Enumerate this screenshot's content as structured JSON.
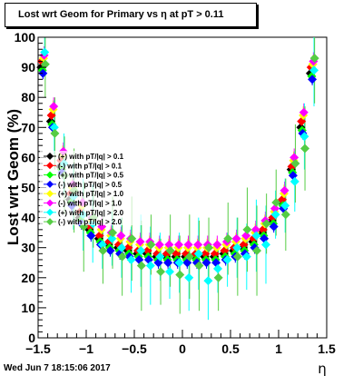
{
  "footer": {
    "timestamp": "Wed Jun  7 18:15:06 2017"
  },
  "chart_data": {
    "type": "scatter",
    "title": "Lost wrt Geom for Primary vs   η at pT > 0.11",
    "xlabel": "η",
    "ylabel": "Lost wrt Geom (%)",
    "xlim": [
      -1.5,
      1.5
    ],
    "ylim": [
      0,
      100
    ],
    "xticks": [
      -1.5,
      -1,
      -0.5,
      0,
      0.5,
      1,
      1.5
    ],
    "xtick_labels": [
      "−1.5",
      "−1",
      "−0.5",
      "0",
      "0.5",
      "1",
      "1.5"
    ],
    "yticks": [
      0,
      10,
      20,
      30,
      40,
      50,
      60,
      70,
      80,
      90,
      100
    ],
    "ytick_labels": [
      "0",
      "10",
      "20",
      "30",
      "40",
      "50",
      "60",
      "70",
      "80",
      "90",
      "100"
    ],
    "legend_position": "middle-left",
    "series": [
      {
        "name": "(+) with pT/|q| > 0.1",
        "color": "#000000",
        "base": [
          90,
          72,
          57,
          46,
          40,
          36,
          33,
          31,
          30,
          29,
          28,
          28,
          27,
          27,
          27,
          27,
          27,
          27,
          27,
          28,
          29,
          30,
          32,
          35,
          39,
          45,
          56,
          70,
          88
        ]
      },
      {
        "name": "(-) with pT/|q| > 0.1",
        "color": "#ff0000",
        "base": [
          92,
          74,
          59,
          48,
          42,
          37,
          34,
          32,
          31,
          30,
          29,
          29,
          28,
          28,
          28,
          28,
          28,
          28,
          28,
          29,
          30,
          31,
          33,
          36,
          40,
          46,
          57,
          72,
          90
        ]
      },
      {
        "name": "(+) with pT/|q| > 0.5",
        "color": "#00ff00",
        "base": [
          89,
          71,
          56,
          45,
          39,
          35,
          32,
          30,
          29,
          28,
          27,
          27,
          26,
          26,
          26,
          26,
          26,
          26,
          26,
          27,
          28,
          29,
          31,
          34,
          38,
          44,
          55,
          69,
          87
        ]
      },
      {
        "name": "(-) with pT/|q| > 0.5",
        "color": "#0000ff",
        "base": [
          88,
          70,
          55,
          44,
          38,
          34,
          31,
          29,
          28,
          27,
          26,
          26,
          25,
          25,
          25,
          25,
          25,
          25,
          25,
          26,
          27,
          28,
          30,
          33,
          37,
          43,
          54,
          68,
          86
        ]
      },
      {
        "name": "(+) with pT/|q| > 1.0",
        "color": "#ffff00",
        "base": [
          93,
          76,
          61,
          50,
          44,
          39,
          36,
          34,
          33,
          32,
          31,
          31,
          30,
          30,
          30,
          30,
          30,
          30,
          30,
          31,
          32,
          33,
          35,
          38,
          42,
          48,
          59,
          74,
          91
        ]
      },
      {
        "name": "(-) with pT/|q| > 1.0",
        "color": "#ff00ff",
        "base": [
          94,
          77,
          62,
          51,
          45,
          40,
          37,
          35,
          34,
          33,
          32,
          32,
          31,
          31,
          31,
          31,
          31,
          31,
          31,
          32,
          33,
          34,
          36,
          39,
          43,
          49,
          60,
          75,
          92
        ]
      },
      {
        "name": "(+) with pT/|q| > 2.0",
        "color": "#00ffff",
        "base": [
          95,
          70,
          58,
          47,
          41,
          38,
          31,
          33,
          30,
          26,
          29,
          24,
          27,
          22,
          25,
          20,
          28,
          19,
          23,
          26,
          30,
          27,
          34,
          31,
          41,
          44,
          52,
          67,
          89
        ]
      },
      {
        "name": "(-) with pT/|q| > 2.0",
        "color": "#55cc44",
        "base": [
          91,
          68,
          54,
          49,
          37,
          40,
          29,
          35,
          27,
          33,
          24,
          31,
          22,
          29,
          21,
          27,
          24,
          30,
          20,
          33,
          27,
          36,
          29,
          38,
          45,
          41,
          58,
          63,
          93
        ]
      }
    ],
    "x": [
      -1.45,
      -1.35,
      -1.25,
      -1.15,
      -1.05,
      -0.95,
      -0.85,
      -0.75,
      -0.65,
      -0.55,
      -0.45,
      -0.35,
      -0.25,
      -0.15,
      -0.05,
      0.05,
      0.15,
      0.25,
      0.35,
      0.45,
      0.55,
      0.65,
      0.75,
      0.85,
      0.95,
      1.05,
      1.15,
      1.25,
      1.35
    ]
  }
}
